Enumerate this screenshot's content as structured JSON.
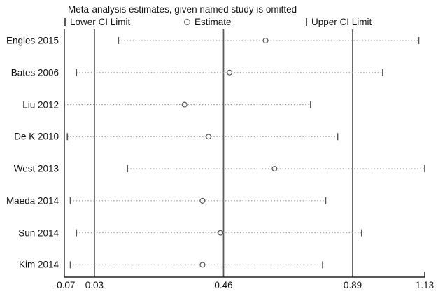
{
  "title": "Meta-analysis estimates, given named study is omitted",
  "legend": {
    "lower": "Lower CI Limit",
    "estimate": "Estimate",
    "upper": "Upper CI Limit"
  },
  "colors": {
    "text": "#111111",
    "reference_line": "#5a5a5a",
    "axis": "#222222",
    "ci_dots": "#999999",
    "marker_stroke": "#555555",
    "marker_fill": "#ffffff"
  },
  "chart_data": {
    "type": "forest",
    "title": "Meta-analysis estimates, given named study is omitted",
    "legend_entries": [
      "Lower CI Limit",
      "Estimate",
      "Upper CI Limit"
    ],
    "xlim": [
      -0.07,
      1.13
    ],
    "x_ticks": [
      {
        "label": "-0.07",
        "value": -0.07
      },
      {
        "label": "0.03",
        "value": 0.03
      },
      {
        "label": "0.46",
        "value": 0.46
      },
      {
        "label": "0.89",
        "value": 0.89
      },
      {
        "label": "1.13",
        "value": 1.13
      }
    ],
    "reference_lines": [
      0.03,
      0.46,
      0.89
    ],
    "grid": false,
    "legend_position": "top",
    "series": [
      {
        "study": "Engles 2015",
        "lower": 0.11,
        "estimate": 0.6,
        "upper": 1.11
      },
      {
        "study": "Bates 2006",
        "lower": -0.03,
        "estimate": 0.48,
        "upper": 0.99
      },
      {
        "study": "Liu 2012",
        "lower": -0.07,
        "estimate": 0.33,
        "upper": 0.75
      },
      {
        "study": "De K 2010",
        "lower": -0.06,
        "estimate": 0.41,
        "upper": 0.84
      },
      {
        "study": "West 2013",
        "lower": 0.14,
        "estimate": 0.63,
        "upper": 1.13
      },
      {
        "study": "Maeda 2014",
        "lower": -0.05,
        "estimate": 0.39,
        "upper": 0.8
      },
      {
        "study": "Sun 2014",
        "lower": -0.03,
        "estimate": 0.45,
        "upper": 0.92
      },
      {
        "study": "Kim 2014",
        "lower": -0.05,
        "estimate": 0.39,
        "upper": 0.79
      }
    ]
  }
}
